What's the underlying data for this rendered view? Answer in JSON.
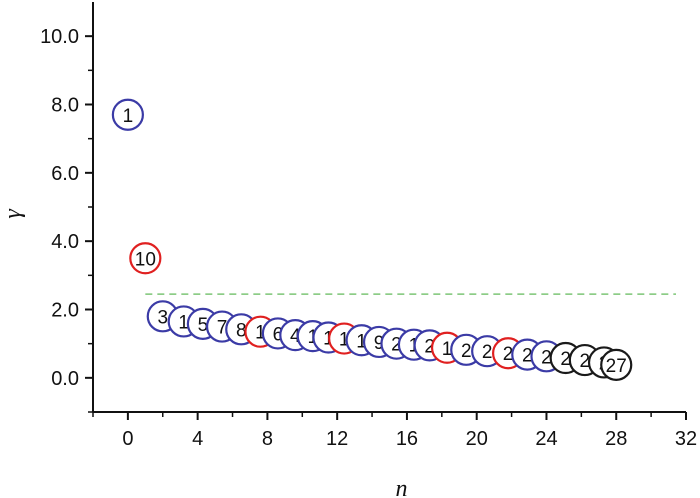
{
  "chart_data": {
    "type": "scatter",
    "title": "",
    "xlabel": "n",
    "ylabel": "γ",
    "xlim": [
      -2,
      32
    ],
    "ylim": [
      -1,
      11
    ],
    "xticks": [
      0,
      4,
      8,
      12,
      16,
      20,
      24,
      28,
      32
    ],
    "xtick_labels": [
      "0",
      "4",
      "8",
      "12",
      "16",
      "20",
      "24",
      "28",
      "32"
    ],
    "yticks": [
      0,
      2,
      4,
      6,
      8,
      10
    ],
    "ytick_labels": [
      "0.0",
      "2.0",
      "4.0",
      "6.0",
      "8.0",
      "10.0"
    ],
    "grid": false,
    "threshold": {
      "y": 2.45,
      "color": "#7cc576",
      "style": "dashed"
    },
    "colors": {
      "blue": "#3b3ba6",
      "red": "#e02020",
      "black": "#1a1a1a"
    },
    "points": [
      {
        "x": 0,
        "y": 7.7,
        "label": "1",
        "color": "blue"
      },
      {
        "x": 1,
        "y": 3.5,
        "label": "10",
        "color": "red"
      },
      {
        "x": 2,
        "y": 1.8,
        "label": "3",
        "color": "blue"
      },
      {
        "x": 3.2,
        "y": 1.65,
        "label": "1",
        "color": "blue"
      },
      {
        "x": 4.3,
        "y": 1.58,
        "label": "5",
        "color": "blue"
      },
      {
        "x": 5.4,
        "y": 1.5,
        "label": "7",
        "color": "blue"
      },
      {
        "x": 6.5,
        "y": 1.42,
        "label": "8",
        "color": "blue"
      },
      {
        "x": 7.6,
        "y": 1.35,
        "label": "1",
        "color": "red"
      },
      {
        "x": 8.6,
        "y": 1.3,
        "label": "6",
        "color": "blue"
      },
      {
        "x": 9.6,
        "y": 1.25,
        "label": "4",
        "color": "blue"
      },
      {
        "x": 10.6,
        "y": 1.22,
        "label": "1",
        "color": "blue"
      },
      {
        "x": 11.5,
        "y": 1.18,
        "label": "1",
        "color": "blue"
      },
      {
        "x": 12.4,
        "y": 1.15,
        "label": "1",
        "color": "red"
      },
      {
        "x": 13.4,
        "y": 1.1,
        "label": "1",
        "color": "blue"
      },
      {
        "x": 14.4,
        "y": 1.05,
        "label": "9",
        "color": "blue"
      },
      {
        "x": 15.4,
        "y": 1.0,
        "label": "2",
        "color": "blue"
      },
      {
        "x": 16.4,
        "y": 0.97,
        "label": "1",
        "color": "blue"
      },
      {
        "x": 17.3,
        "y": 0.95,
        "label": "2",
        "color": "blue"
      },
      {
        "x": 18.3,
        "y": 0.88,
        "label": "1",
        "color": "red"
      },
      {
        "x": 19.4,
        "y": 0.82,
        "label": "2",
        "color": "blue"
      },
      {
        "x": 20.6,
        "y": 0.78,
        "label": "2",
        "color": "blue"
      },
      {
        "x": 21.8,
        "y": 0.72,
        "label": "2",
        "color": "red"
      },
      {
        "x": 22.9,
        "y": 0.68,
        "label": "2",
        "color": "blue"
      },
      {
        "x": 24.0,
        "y": 0.63,
        "label": "2",
        "color": "blue"
      },
      {
        "x": 25.1,
        "y": 0.58,
        "label": "2",
        "color": "black"
      },
      {
        "x": 26.2,
        "y": 0.52,
        "label": "2",
        "color": "black"
      },
      {
        "x": 27.3,
        "y": 0.45,
        "label": "2",
        "color": "black"
      },
      {
        "x": 28.0,
        "y": 0.38,
        "label": "27",
        "color": "black"
      }
    ]
  }
}
